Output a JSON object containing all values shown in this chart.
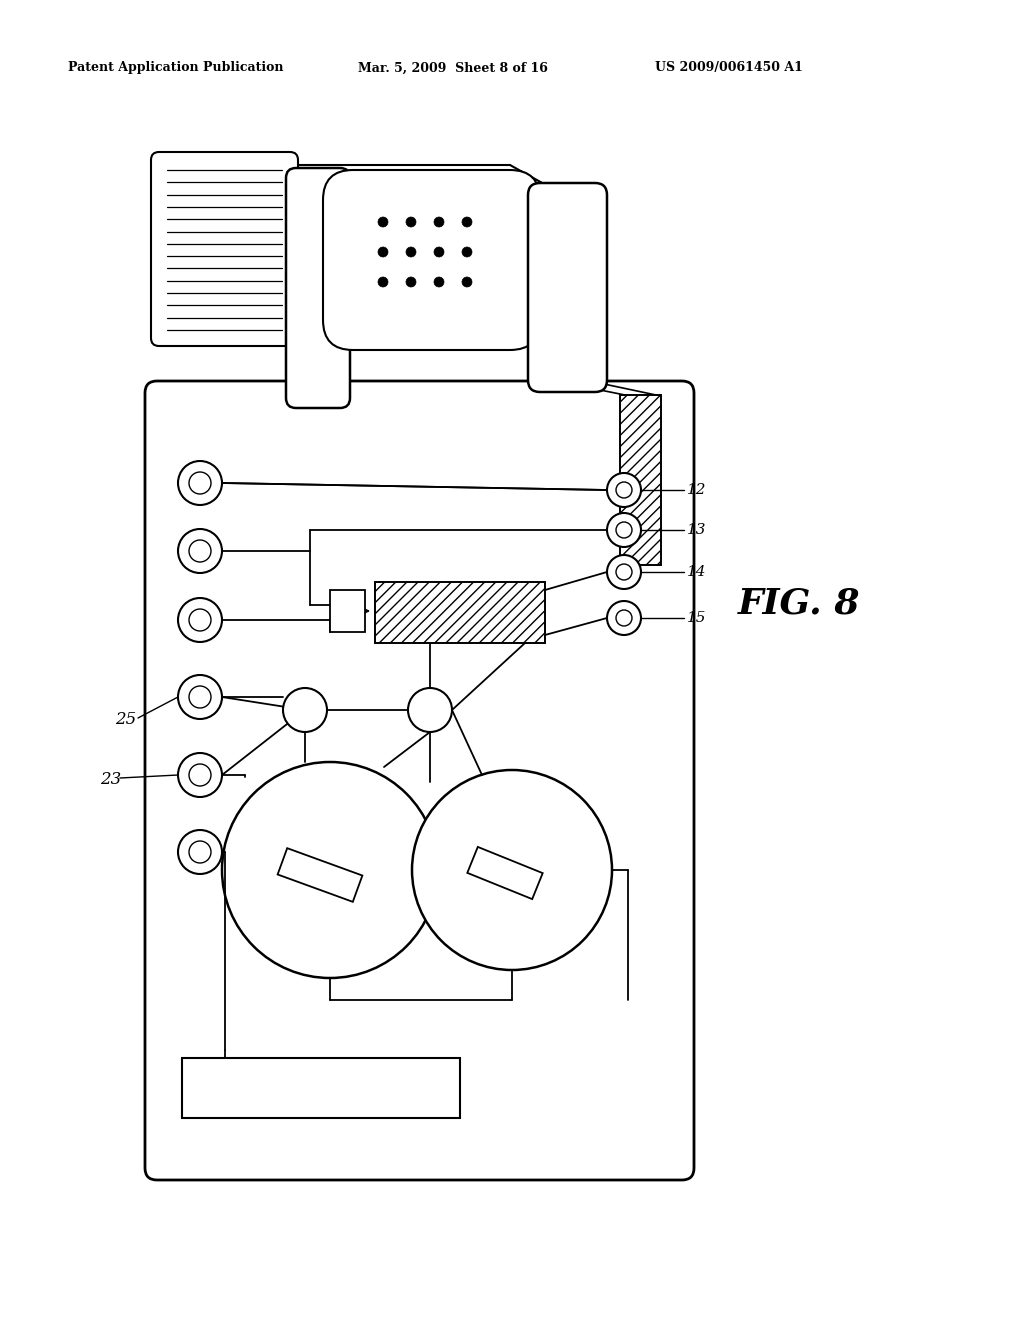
{
  "header_left": "Patent Application Publication",
  "header_mid": "Mar. 5, 2009  Sheet 8 of 16",
  "header_right": "US 2009/0061450 A1",
  "fig_label": "FIG. 8",
  "bg": "#ffffff"
}
